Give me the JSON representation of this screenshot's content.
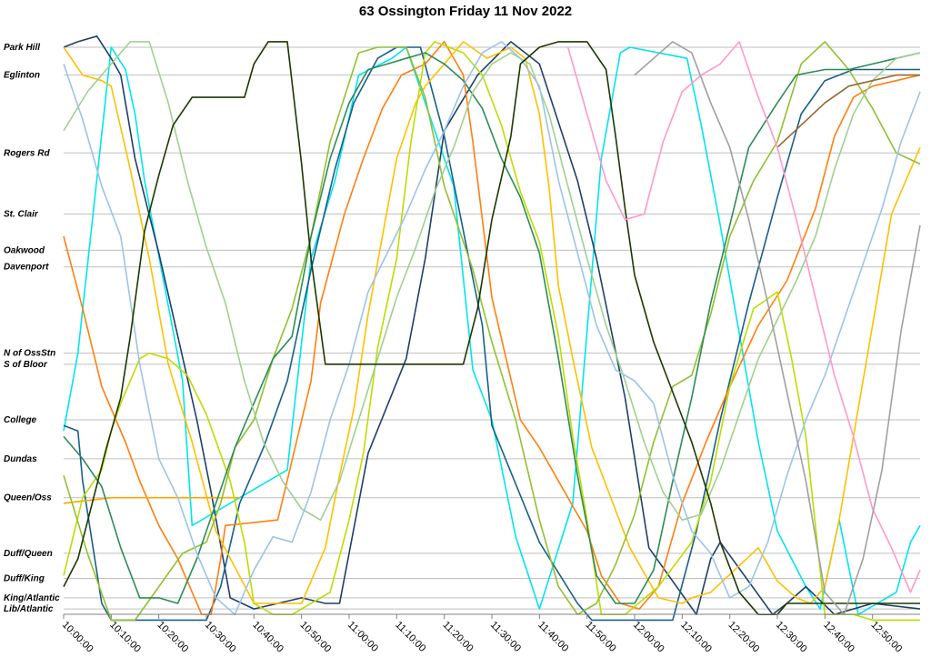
{
  "chart_data": {
    "type": "line",
    "title": "63 Ossington Friday 11 Nov 2022",
    "xlabel": "",
    "ylabel": "",
    "x_range": [
      0,
      180
    ],
    "x_ticks": [
      {
        "t": 0,
        "label": "10:00:00"
      },
      {
        "t": 10,
        "label": "10:10:00"
      },
      {
        "t": 20,
        "label": "10:20:00"
      },
      {
        "t": 30,
        "label": "10:30:00"
      },
      {
        "t": 40,
        "label": "10:40:00"
      },
      {
        "t": 50,
        "label": "10:50:00"
      },
      {
        "t": 60,
        "label": "11:00:00"
      },
      {
        "t": 70,
        "label": "11:10:00"
      },
      {
        "t": 80,
        "label": "11:20:00"
      },
      {
        "t": 90,
        "label": "11:30:00"
      },
      {
        "t": 100,
        "label": "11:40:00"
      },
      {
        "t": 110,
        "label": "11:50:00"
      },
      {
        "t": 120,
        "label": "12:00:00"
      },
      {
        "t": 130,
        "label": "12:10:00"
      },
      {
        "t": 140,
        "label": "12:20:00"
      },
      {
        "t": 150,
        "label": "12:30:00"
      },
      {
        "t": 160,
        "label": "12:40:00"
      },
      {
        "t": 170,
        "label": "12:50:00"
      }
    ],
    "y_range": [
      0,
      100
    ],
    "stops": [
      {
        "name": "Park Hill",
        "pos": 100
      },
      {
        "name": "Eglinton",
        "pos": 95
      },
      {
        "name": "Rogers Rd",
        "pos": 81
      },
      {
        "name": "St. Clair",
        "pos": 70
      },
      {
        "name": "Oakwood",
        "pos": 63.5
      },
      {
        "name": "Davenport",
        "pos": 60.5
      },
      {
        "name": "N of OssStn",
        "pos": 45
      },
      {
        "name": "S of Bloor",
        "pos": 43
      },
      {
        "name": "College",
        "pos": 33
      },
      {
        "name": "Dundas",
        "pos": 26
      },
      {
        "name": "Queen/Oss",
        "pos": 19
      },
      {
        "name": "Duff/Queen",
        "pos": 9
      },
      {
        "name": "Duff/King",
        "pos": 4.5
      },
      {
        "name": "King/Atlantic",
        "pos": 1
      },
      {
        "name": "Lib/Atlantic",
        "pos": -1
      }
    ],
    "grid": true,
    "legend": "none",
    "series": [
      {
        "color": "#00e5ee",
        "x": [
          0,
          3,
          10,
          13,
          15,
          17,
          25,
          27,
          47,
          52,
          57,
          62,
          69,
          72,
          82,
          86,
          90,
          95,
          100,
          107,
          113,
          117,
          119,
          131,
          134,
          138,
          146,
          150,
          156,
          159,
          163,
          167,
          175,
          178,
          180
        ],
        "y": [
          31,
          45,
          100,
          96,
          88,
          76,
          40,
          14,
          24,
          62,
          76,
          95,
          98,
          100,
          75,
          42,
          33,
          12,
          -1,
          18,
          80,
          99,
          100,
          98,
          86,
          68,
          29,
          13,
          3,
          -1,
          15,
          -2,
          2,
          11,
          14
        ]
      },
      {
        "color": "#1f3f6a",
        "x": [
          0,
          3,
          7,
          10,
          12,
          15,
          20,
          28,
          31,
          35,
          40,
          45,
          50,
          55,
          58,
          64,
          72,
          76,
          80,
          87,
          94,
          100,
          108,
          112,
          118,
          123,
          133,
          136,
          138,
          149,
          152,
          156,
          162,
          170,
          180
        ],
        "y": [
          100,
          101,
          102,
          98,
          95,
          80,
          63,
          33,
          20,
          1,
          -1,
          0,
          1,
          0,
          0,
          27,
          44,
          62,
          85,
          95,
          101,
          97,
          76,
          62,
          37,
          10,
          -2,
          8,
          11,
          -2,
          0,
          3,
          -2,
          0,
          -1
        ]
      },
      {
        "color": "#1a5f8a",
        "x": [
          0,
          3,
          4,
          8,
          10,
          11,
          13,
          15,
          17,
          19,
          22,
          26,
          30,
          33,
          37,
          42,
          47,
          52,
          57,
          61,
          66,
          70,
          75,
          80,
          88,
          90,
          100,
          108,
          111,
          116,
          120,
          124,
          128,
          133,
          138,
          144,
          150,
          155,
          160,
          166,
          170,
          175,
          180
        ],
        "y": [
          32,
          31,
          22,
          0,
          -3,
          -3,
          -3,
          -3,
          -3,
          -3,
          -3,
          -3,
          -3,
          3,
          18,
          28,
          40,
          60,
          78,
          90,
          98,
          100,
          100,
          84,
          50,
          32,
          11,
          0,
          -3,
          -3,
          -3,
          -3,
          -3,
          13,
          33,
          54,
          73,
          88,
          94,
          96,
          96,
          96,
          96
        ]
      },
      {
        "color": "#ff7f0e",
        "x": [
          0,
          4,
          8,
          10,
          13,
          16,
          20,
          24,
          29,
          31,
          33,
          34,
          45,
          52,
          54,
          59,
          63,
          67,
          71,
          76,
          80,
          84,
          86,
          90,
          96,
          100,
          106,
          110,
          113,
          117,
          121,
          125,
          130,
          135,
          140,
          146,
          152,
          158,
          162,
          166,
          170,
          175,
          180
        ],
        "y": [
          66,
          53,
          39,
          35,
          29,
          22,
          14,
          8,
          -2,
          -2,
          8,
          14,
          15,
          40,
          54,
          70,
          80,
          89,
          95,
          97,
          101,
          95,
          83,
          55,
          33,
          28,
          19,
          13,
          5,
          0,
          -1,
          3,
          18,
          29,
          39,
          50,
          58,
          71,
          84,
          91,
          93,
          94,
          95
        ]
      },
      {
        "color": "#ffc000",
        "x": [
          0,
          4,
          8,
          10,
          14,
          18,
          22,
          27,
          32,
          40,
          44,
          50,
          55,
          58,
          61,
          64,
          67,
          70,
          74,
          76,
          79,
          82,
          84,
          89,
          94,
          97,
          100,
          102,
          104,
          107,
          111,
          119,
          125,
          130,
          132,
          136,
          141,
          146,
          150,
          154,
          157,
          160,
          163,
          166,
          170,
          174,
          180
        ],
        "y": [
          100,
          95,
          94,
          93,
          78,
          62,
          43,
          29,
          13,
          0,
          0,
          0,
          10,
          23,
          35,
          52,
          66,
          80,
          90,
          93,
          96,
          99,
          101,
          98,
          100,
          98,
          88,
          75,
          57,
          44,
          28,
          10,
          1,
          0,
          1,
          2,
          6,
          10,
          4,
          1,
          0,
          3,
          15,
          30,
          50,
          70,
          82
        ]
      },
      {
        "color": "#ffa500",
        "x": [
          0,
          10,
          20,
          27,
          31,
          37
        ],
        "y": [
          18,
          19,
          19,
          19,
          19,
          19
        ]
      },
      {
        "color": "#bbdd00",
        "x": [
          0,
          4,
          8,
          10,
          12,
          14,
          16,
          18,
          22,
          26,
          30,
          35,
          38,
          40,
          44,
          48,
          52,
          56,
          60,
          63,
          66,
          70,
          73,
          76,
          78,
          81,
          84,
          88,
          92,
          96,
          100,
          104,
          107,
          110,
          113,
          118,
          125,
          132,
          136,
          140,
          145,
          150,
          153,
          156,
          160,
          166,
          170,
          174,
          180
        ],
        "y": [
          5,
          19,
          24,
          31,
          36,
          40,
          44,
          45,
          44,
          41,
          34,
          22,
          11,
          0,
          -2,
          -2,
          0,
          2,
          15,
          27,
          46,
          62,
          83,
          99,
          101,
          100,
          99,
          95,
          86,
          74,
          65,
          48,
          30,
          15,
          -2,
          -2,
          3,
          11,
          22,
          39,
          53,
          56,
          44,
          30,
          -2,
          -2,
          -3,
          -3,
          -3
        ]
      },
      {
        "color": "#90c030",
        "x": [
          0,
          5,
          10,
          15,
          20,
          25,
          30,
          33,
          36,
          40,
          44,
          48,
          52,
          56,
          62,
          66,
          68,
          72,
          76,
          80,
          86,
          90,
          95,
          100,
          104,
          108,
          112,
          116,
          120,
          124,
          128,
          132,
          136,
          140,
          145,
          150,
          155,
          160,
          165,
          170,
          175,
          180
        ],
        "y": [
          23,
          9,
          -3,
          -3,
          3,
          9,
          11,
          18,
          28,
          33,
          44,
          53,
          66,
          83,
          99,
          100,
          100,
          100,
          91,
          75,
          60,
          47,
          33,
          15,
          3,
          -2,
          0,
          7,
          16,
          29,
          39,
          41,
          52,
          66,
          76,
          83,
          97,
          101,
          96,
          89,
          81,
          79
        ]
      },
      {
        "color": "#2e8b57",
        "x": [
          0,
          4,
          8,
          12,
          16,
          20,
          24,
          28,
          32,
          36,
          40,
          44,
          48,
          52,
          56,
          60,
          64,
          68,
          72,
          76,
          80,
          84,
          88,
          92,
          96,
          100,
          104,
          108,
          112,
          116,
          120,
          124,
          128,
          132,
          136,
          140,
          144,
          150,
          154,
          160,
          165,
          170,
          175,
          180
        ],
        "y": [
          30,
          26,
          21,
          10,
          1,
          1,
          0,
          8,
          18,
          28,
          36,
          44,
          48,
          66,
          80,
          90,
          96,
          97,
          98,
          99,
          97,
          94,
          89,
          80,
          73,
          63,
          44,
          23,
          5,
          0,
          0,
          6,
          22,
          37,
          54,
          68,
          82,
          90,
          95,
          96,
          96,
          97,
          98,
          99
        ]
      },
      {
        "color": "#9fd08f",
        "x": [
          0,
          5,
          10,
          14,
          18,
          22,
          26,
          30,
          34,
          38,
          42,
          46,
          50,
          54,
          58,
          62,
          66,
          70,
          74,
          78,
          82,
          86,
          90,
          94,
          98,
          102,
          106,
          110,
          114,
          118,
          122,
          126,
          130,
          134,
          138,
          142,
          146,
          150,
          154,
          158,
          162,
          166,
          170,
          175,
          180
        ],
        "y": [
          85,
          92,
          97,
          101,
          101,
          90,
          76,
          64,
          54,
          40,
          29,
          22,
          17,
          15,
          22,
          33,
          44,
          55,
          64,
          74,
          82,
          92,
          97,
          99,
          97,
          88,
          75,
          62,
          50,
          40,
          29,
          20,
          15,
          16,
          24,
          34,
          44,
          51,
          58,
          66,
          78,
          88,
          94,
          98,
          99
        ]
      },
      {
        "color": "#9dc3e6",
        "x": [
          0,
          4,
          8,
          12,
          16,
          20,
          24,
          28,
          32,
          36,
          40,
          44,
          48,
          52,
          56,
          60,
          64,
          68,
          72,
          76,
          80,
          84,
          88,
          92,
          96,
          100,
          104,
          108,
          112,
          116,
          120,
          124,
          128,
          132,
          136,
          140,
          144,
          148,
          152,
          156,
          160,
          164,
          168,
          172,
          176,
          180
        ],
        "y": [
          97,
          87,
          75,
          66,
          43,
          26,
          19,
          9,
          1,
          -2,
          6,
          12,
          11,
          20,
          33,
          43,
          56,
          63,
          70,
          78,
          85,
          93,
          99,
          101,
          98,
          93,
          76,
          63,
          50,
          42,
          40,
          36,
          23,
          13,
          9,
          1,
          3,
          11,
          23,
          33,
          41,
          51,
          61,
          71,
          83,
          92
        ]
      },
      {
        "color": "#1c3800",
        "x": [
          0,
          3,
          6,
          9,
          12,
          14,
          17,
          20,
          23,
          27,
          34,
          38,
          40,
          43,
          47,
          50,
          52,
          55,
          58,
          62,
          68,
          72,
          76,
          80,
          84,
          87,
          90,
          94,
          96,
          100,
          104,
          106,
          110,
          114,
          116,
          118,
          120,
          124,
          128,
          132,
          136,
          138,
          142,
          146,
          150,
          152,
          156,
          160,
          164,
          166,
          170,
          175,
          180
        ],
        "y": [
          3,
          8,
          18,
          28,
          37,
          48,
          67,
          77,
          86,
          91,
          91,
          91,
          97,
          101,
          101,
          79,
          62,
          43,
          43,
          43,
          43,
          43,
          43,
          43,
          43,
          53,
          69,
          84,
          97,
          100,
          101,
          101,
          101,
          96,
          84,
          71,
          59,
          47,
          38,
          29,
          18,
          11,
          2,
          -2,
          -2,
          0,
          0,
          0,
          0,
          0,
          0,
          0,
          0
        ]
      },
      {
        "color": "#996633",
        "x": [
          150,
          155,
          160,
          165,
          170,
          175,
          180
        ],
        "y": [
          82,
          86,
          90,
          93,
          94,
          95,
          95
        ]
      },
      {
        "color": "#ff99cc",
        "x": [
          106,
          110,
          114,
          118,
          122,
          126,
          130,
          134,
          138,
          142,
          146,
          150,
          154,
          158,
          162,
          166,
          170,
          174,
          178,
          180
        ],
        "y": [
          100,
          88,
          76,
          69,
          70,
          83,
          92,
          95,
          97,
          101,
          91,
          82,
          69,
          55,
          41,
          30,
          17,
          10,
          2,
          6
        ]
      },
      {
        "color": "#a0a0a0",
        "x": [
          120,
          124,
          128,
          132,
          136,
          140,
          144,
          148,
          152,
          156,
          160,
          164,
          168,
          172,
          176,
          180
        ],
        "y": [
          95,
          98,
          101,
          99,
          90,
          82,
          69,
          54,
          38,
          22,
          2,
          -2,
          8,
          24,
          49,
          68
        ]
      }
    ]
  }
}
